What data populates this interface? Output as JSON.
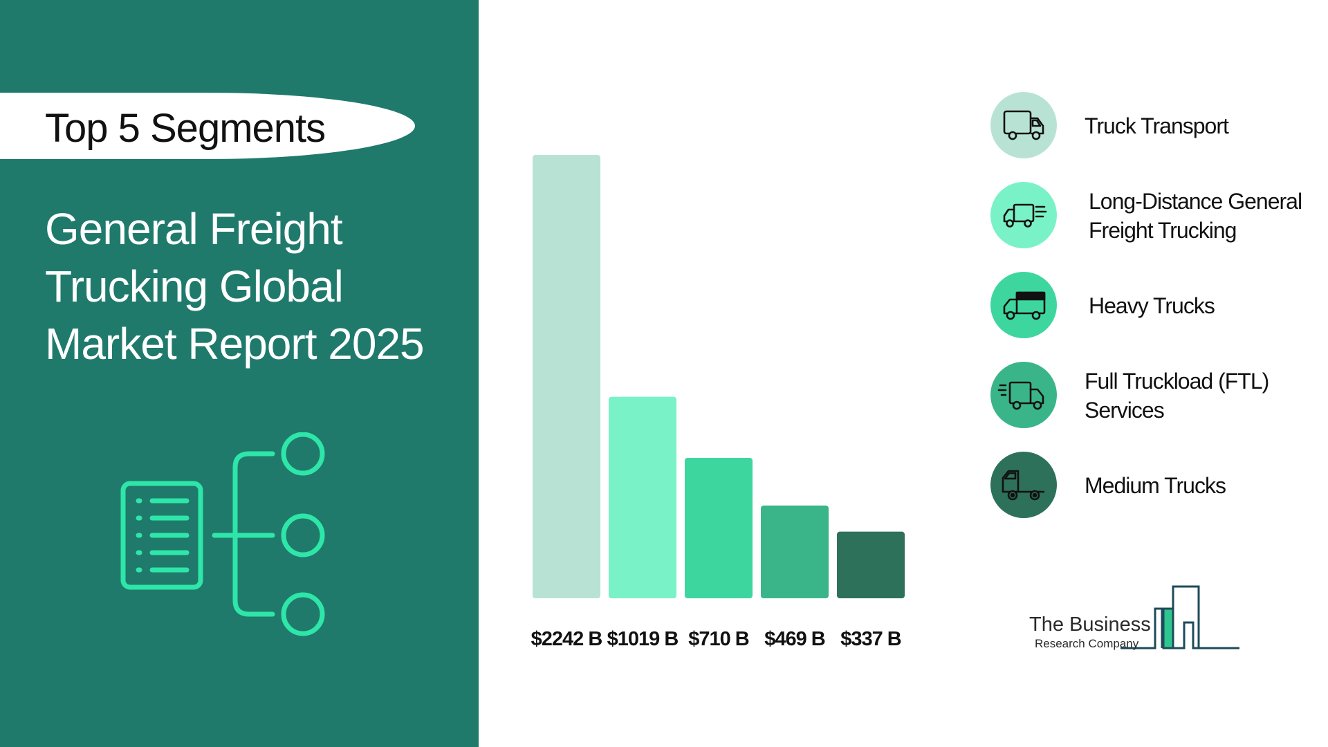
{
  "header": {
    "segment_label": "Top 5 Segments",
    "title_lines": [
      "General Freight",
      "Trucking Global",
      "Market Report 2025"
    ]
  },
  "chart_data": {
    "type": "bar",
    "categories": [
      "Truck Transport",
      "Long-Distance General Freight Trucking",
      "Heavy Trucks",
      "Full Truckload (FTL) Services",
      "Medium Trucks"
    ],
    "values": [
      2242,
      1019,
      710,
      469,
      337
    ],
    "data_labels": [
      "$2242 B",
      "$1019 B",
      "$710 B",
      "$469 B",
      "$337 B"
    ],
    "colors": [
      "#b8e3d4",
      "#7af2c8",
      "#3ed69f",
      "#3ab58a",
      "#2e715a"
    ],
    "ylim": [
      0,
      2242
    ],
    "grid": false,
    "legend_position": "right"
  },
  "legend": [
    {
      "lines": [
        "Truck Transport"
      ],
      "icon": "box-truck-icon",
      "color": "#b8e3d4"
    },
    {
      "lines": [
        "Long-Distance General",
        "Freight Trucking"
      ],
      "icon": "fast-truck-icon",
      "color": "#7af2c8"
    },
    {
      "lines": [
        "Heavy Trucks"
      ],
      "icon": "heavy-truck-icon",
      "color": "#3ed69f"
    },
    {
      "lines": [
        "Full Truckload (FTL)",
        "Services"
      ],
      "icon": "delivery-truck-icon",
      "color": "#3ab58a"
    },
    {
      "lines": [
        "Medium Trucks"
      ],
      "icon": "medium-truck-icon",
      "color": "#2e715a"
    }
  ],
  "logo": {
    "line1": "The Business",
    "line2": "Research Company"
  },
  "colors": {
    "panel": "#1f7a6c",
    "accent": "#2ee6a8"
  }
}
